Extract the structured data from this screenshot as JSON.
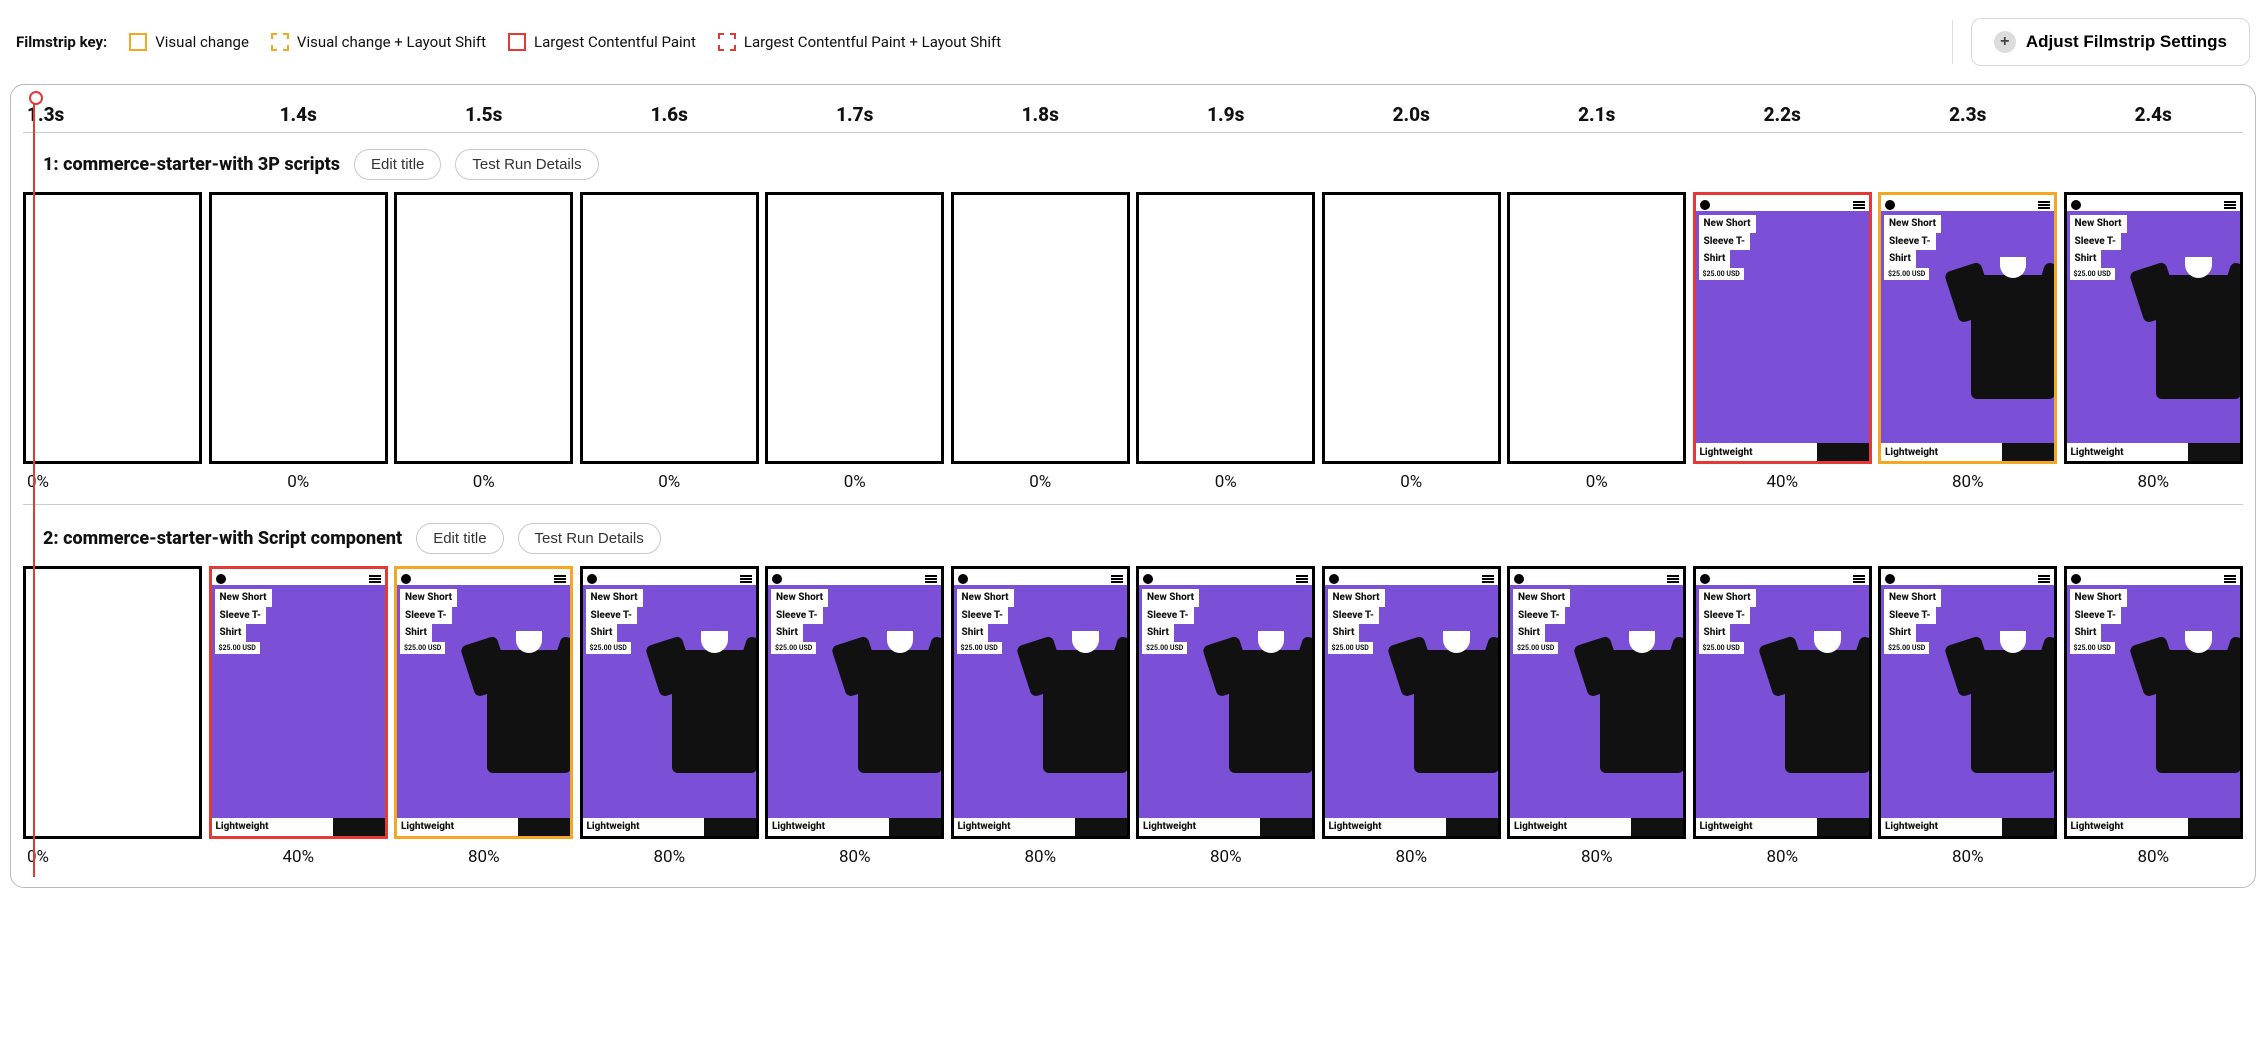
{
  "colors": {
    "visual_change": "#f5a623",
    "lcp": "#e53935",
    "frame_border": "#000000",
    "panel_border": "#bcbcbc",
    "product_bg": "#7b4fd6",
    "tshirt": "#111111"
  },
  "legend": {
    "label": "Filmstrip key:",
    "items": [
      {
        "text": "Visual change",
        "color": "#f5a623",
        "dashed": false
      },
      {
        "text": "Visual change + Layout Shift",
        "color": "#f5a623",
        "dashed": true
      },
      {
        "text": "Largest Contentful Paint",
        "color": "#e53935",
        "dashed": false
      },
      {
        "text": "Largest Contentful Paint + Layout Shift",
        "color": "#e53935",
        "dashed": true
      }
    ]
  },
  "settings_button": "Adjust Filmstrip Settings",
  "timeline": [
    "1.3s",
    "1.4s",
    "1.5s",
    "1.6s",
    "1.7s",
    "1.8s",
    "1.9s",
    "2.0s",
    "2.1s",
    "2.2s",
    "2.3s",
    "2.4s"
  ],
  "buttons": {
    "edit_title": "Edit title",
    "test_run_details": "Test Run Details"
  },
  "product": {
    "title_l1": "New Short",
    "title_l2": "Sleeve T-",
    "title_l3": "Shirt",
    "price": "$25.00 USD",
    "badge": "Lightweight"
  },
  "groups": [
    {
      "title": "1: commerce-starter-with 3P scripts",
      "frames": [
        {
          "pct": "0%",
          "content": false,
          "tshirt": false,
          "border": "normal"
        },
        {
          "pct": "0%",
          "content": false,
          "tshirt": false,
          "border": "normal"
        },
        {
          "pct": "0%",
          "content": false,
          "tshirt": false,
          "border": "normal"
        },
        {
          "pct": "0%",
          "content": false,
          "tshirt": false,
          "border": "normal"
        },
        {
          "pct": "0%",
          "content": false,
          "tshirt": false,
          "border": "normal"
        },
        {
          "pct": "0%",
          "content": false,
          "tshirt": false,
          "border": "normal"
        },
        {
          "pct": "0%",
          "content": false,
          "tshirt": false,
          "border": "normal"
        },
        {
          "pct": "0%",
          "content": false,
          "tshirt": false,
          "border": "normal"
        },
        {
          "pct": "0%",
          "content": false,
          "tshirt": false,
          "border": "normal"
        },
        {
          "pct": "40%",
          "content": true,
          "tshirt": false,
          "border": "lcp"
        },
        {
          "pct": "80%",
          "content": true,
          "tshirt": true,
          "border": "vis"
        },
        {
          "pct": "80%",
          "content": true,
          "tshirt": true,
          "border": "normal"
        }
      ]
    },
    {
      "title": "2: commerce-starter-with Script component",
      "frames": [
        {
          "pct": "0%",
          "content": false,
          "tshirt": false,
          "border": "normal"
        },
        {
          "pct": "40%",
          "content": true,
          "tshirt": false,
          "border": "lcp"
        },
        {
          "pct": "80%",
          "content": true,
          "tshirt": true,
          "border": "vis"
        },
        {
          "pct": "80%",
          "content": true,
          "tshirt": true,
          "border": "normal"
        },
        {
          "pct": "80%",
          "content": true,
          "tshirt": true,
          "border": "normal"
        },
        {
          "pct": "80%",
          "content": true,
          "tshirt": true,
          "border": "normal"
        },
        {
          "pct": "80%",
          "content": true,
          "tshirt": true,
          "border": "normal"
        },
        {
          "pct": "80%",
          "content": true,
          "tshirt": true,
          "border": "normal"
        },
        {
          "pct": "80%",
          "content": true,
          "tshirt": true,
          "border": "normal"
        },
        {
          "pct": "80%",
          "content": true,
          "tshirt": true,
          "border": "normal"
        },
        {
          "pct": "80%",
          "content": true,
          "tshirt": true,
          "border": "normal"
        },
        {
          "pct": "80%",
          "content": true,
          "tshirt": true,
          "border": "normal"
        }
      ]
    }
  ]
}
